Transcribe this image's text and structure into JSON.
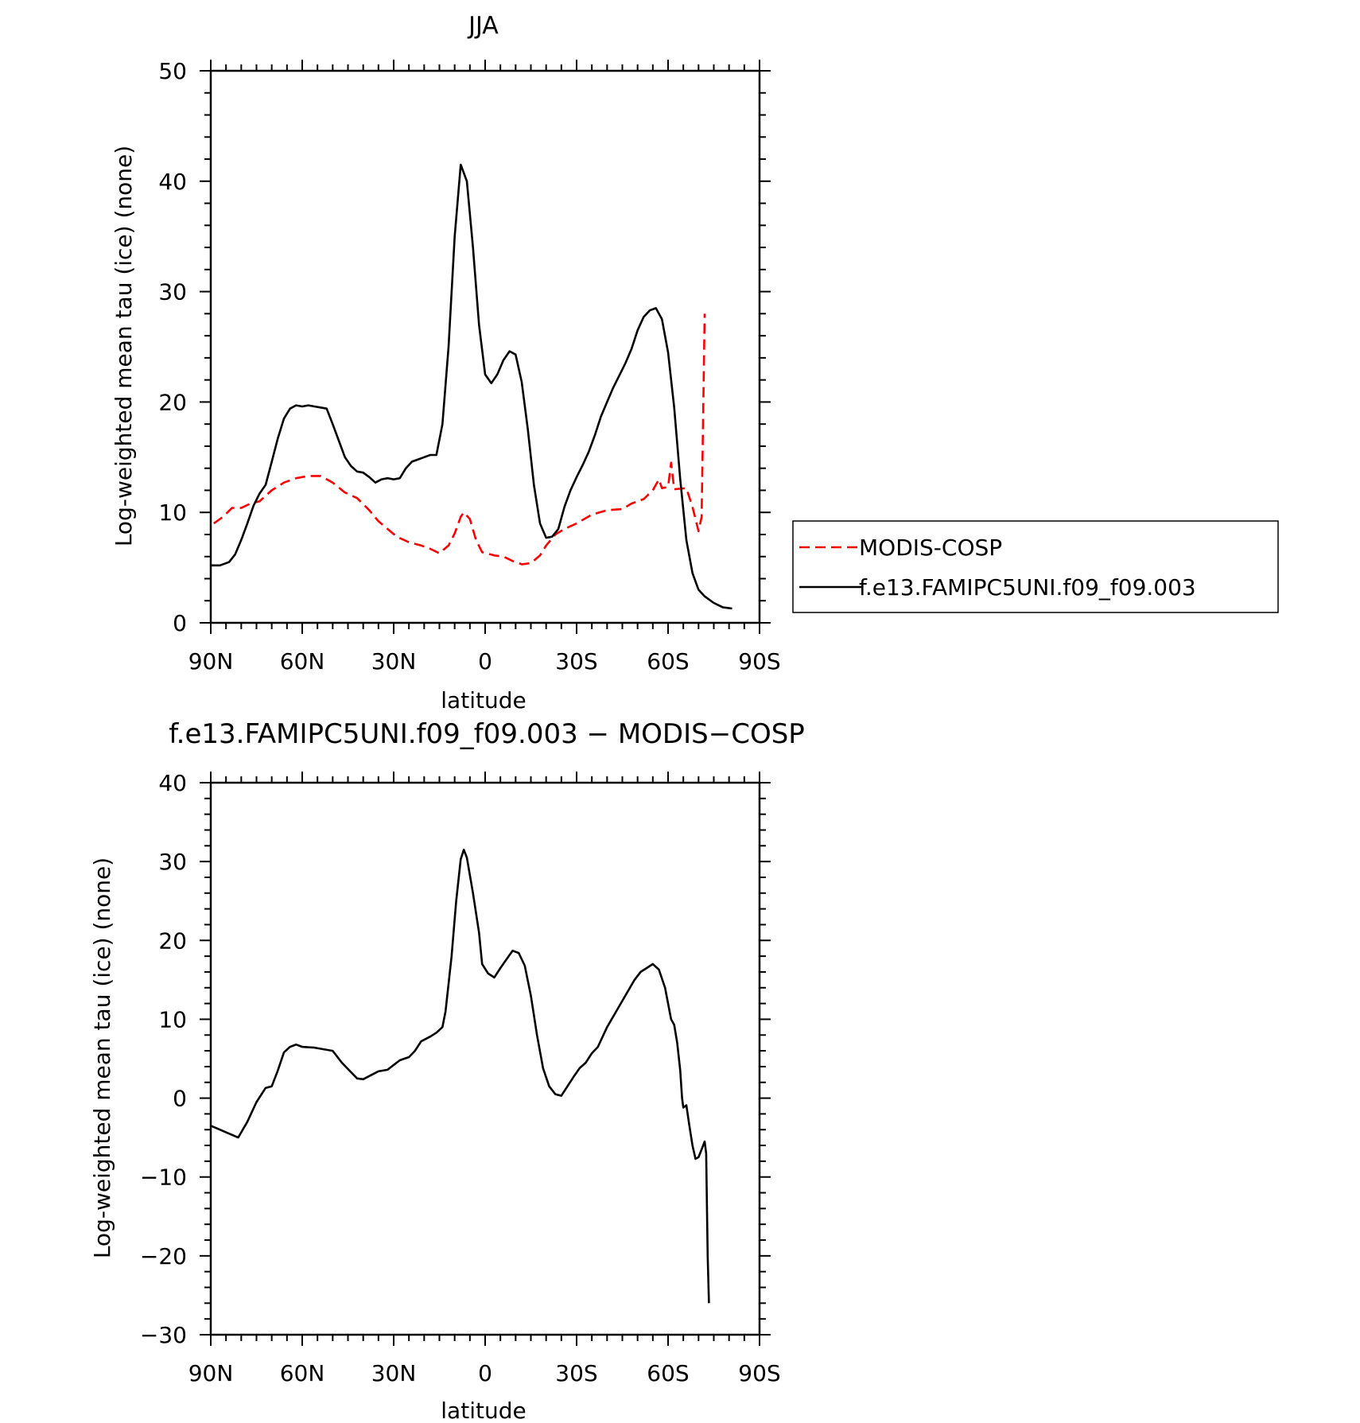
{
  "chart_data": [
    {
      "type": "line",
      "title": "JJA",
      "xlabel": "latitude",
      "ylabel": "Log-weighted mean tau (ice) (none)",
      "xlim": [
        90,
        -90
      ],
      "ylim": [
        0,
        50
      ],
      "x_ticks": [
        90,
        60,
        30,
        0,
        -30,
        -60,
        -90
      ],
      "x_tick_labels": [
        "90N",
        "60N",
        "30N",
        "0",
        "30S",
        "60S",
        "90S"
      ],
      "y_ticks": [
        0,
        10,
        20,
        30,
        40,
        50
      ],
      "y_tick_labels": [
        "0",
        "10",
        "20",
        "30",
        "40",
        "50"
      ],
      "grid": false,
      "legend": {
        "placement": "right"
      },
      "series": [
        {
          "name": "MODIS-COSP",
          "color": "#ff0000",
          "dash": "dashed",
          "points": [
            [
              89,
              9
            ],
            [
              86,
              9.6
            ],
            [
              83,
              10.4
            ],
            [
              80,
              10.4
            ],
            [
              77,
              10.8
            ],
            [
              74,
              11
            ],
            [
              70,
              12
            ],
            [
              66,
              12.7
            ],
            [
              62,
              13.1
            ],
            [
              58,
              13.3
            ],
            [
              54,
              13.3
            ],
            [
              50,
              12.7
            ],
            [
              46,
              11.8
            ],
            [
              42,
              11.3
            ],
            [
              38,
              10.2
            ],
            [
              35,
              9.2
            ],
            [
              32,
              8.5
            ],
            [
              29,
              7.8
            ],
            [
              25,
              7.3
            ],
            [
              21,
              7
            ],
            [
              18,
              6.7
            ],
            [
              15,
              6.3
            ],
            [
              12,
              7
            ],
            [
              10,
              8.1
            ],
            [
              8,
              9.6
            ],
            [
              7,
              10
            ],
            [
              5,
              9.4
            ],
            [
              3,
              7.5
            ],
            [
              1,
              6.4
            ],
            [
              -3,
              6.1
            ],
            [
              -6,
              6
            ],
            [
              -9,
              5.6
            ],
            [
              -12,
              5.3
            ],
            [
              -15,
              5.4
            ],
            [
              -18,
              6.1
            ],
            [
              -20,
              7
            ],
            [
              -23,
              8
            ],
            [
              -26,
              8.5
            ],
            [
              -30,
              9
            ],
            [
              -35,
              9.8
            ],
            [
              -40,
              10.2
            ],
            [
              -45,
              10.3
            ],
            [
              -48,
              10.8
            ],
            [
              -52,
              11.2
            ],
            [
              -55,
              12
            ],
            [
              -57,
              13
            ],
            [
              -58,
              12.2
            ],
            [
              -60,
              12.3
            ],
            [
              -61,
              14.5
            ],
            [
              -62,
              12.1
            ],
            [
              -66,
              12.2
            ],
            [
              -68,
              10.5
            ],
            [
              -70,
              8.3
            ],
            [
              -71,
              9.6
            ],
            [
              -72,
              28
            ]
          ]
        },
        {
          "name": "f.e13.FAMIPC5UNI.f09_f09.003",
          "color": "#000000",
          "dash": "solid",
          "points": [
            [
              90,
              5.2
            ],
            [
              87,
              5.2
            ],
            [
              84,
              5.5
            ],
            [
              82,
              6.2
            ],
            [
              80,
              7.5
            ],
            [
              78,
              9
            ],
            [
              76,
              10.6
            ],
            [
              74,
              11.7
            ],
            [
              72,
              12.5
            ],
            [
              70,
              14.6
            ],
            [
              68,
              16.7
            ],
            [
              66,
              18.5
            ],
            [
              64,
              19.4
            ],
            [
              62,
              19.7
            ],
            [
              60,
              19.6
            ],
            [
              58,
              19.7
            ],
            [
              56,
              19.6
            ],
            [
              54,
              19.5
            ],
            [
              52,
              19.4
            ],
            [
              50,
              18
            ],
            [
              48,
              16.5
            ],
            [
              46,
              15
            ],
            [
              44,
              14.2
            ],
            [
              42,
              13.7
            ],
            [
              40,
              13.6
            ],
            [
              38,
              13.2
            ],
            [
              36,
              12.7
            ],
            [
              34,
              13
            ],
            [
              32,
              13.1
            ],
            [
              30,
              13
            ],
            [
              28,
              13.1
            ],
            [
              26,
              14
            ],
            [
              24,
              14.6
            ],
            [
              22,
              14.8
            ],
            [
              20,
              15
            ],
            [
              18,
              15.2
            ],
            [
              16,
              15.2
            ],
            [
              14,
              18
            ],
            [
              12,
              25
            ],
            [
              10,
              35
            ],
            [
              8,
              41.5
            ],
            [
              6,
              40
            ],
            [
              4,
              34
            ],
            [
              2,
              27
            ],
            [
              0,
              22.5
            ],
            [
              -2,
              21.7
            ],
            [
              -4,
              22.5
            ],
            [
              -6,
              23.8
            ],
            [
              -8,
              24.6
            ],
            [
              -10,
              24.3
            ],
            [
              -12,
              21.8
            ],
            [
              -14,
              17.5
            ],
            [
              -16,
              12.5
            ],
            [
              -18,
              9
            ],
            [
              -20,
              7.7
            ],
            [
              -22,
              7.8
            ],
            [
              -24,
              8.5
            ],
            [
              -26,
              10.5
            ],
            [
              -28,
              12
            ],
            [
              -30,
              13.2
            ],
            [
              -32,
              14.3
            ],
            [
              -34,
              15.5
            ],
            [
              -36,
              17
            ],
            [
              -38,
              18.7
            ],
            [
              -40,
              20
            ],
            [
              -42,
              21.3
            ],
            [
              -44,
              22.4
            ],
            [
              -46,
              23.5
            ],
            [
              -48,
              24.8
            ],
            [
              -50,
              26.5
            ],
            [
              -52,
              27.7
            ],
            [
              -54,
              28.3
            ],
            [
              -56,
              28.5
            ],
            [
              -58,
              27.5
            ],
            [
              -60,
              24.5
            ],
            [
              -62,
              19.5
            ],
            [
              -64,
              13
            ],
            [
              -66,
              7.5
            ],
            [
              -68,
              4.5
            ],
            [
              -70,
              3
            ],
            [
              -72,
              2.4
            ],
            [
              -75,
              1.8
            ],
            [
              -78,
              1.4
            ],
            [
              -81,
              1.3
            ]
          ]
        }
      ]
    },
    {
      "type": "line",
      "title": "f.e13.FAMIPC5UNI.f09_f09.003 − MODIS−COSP",
      "xlabel": "latitude",
      "ylabel": "Log-weighted mean tau (ice) (none)",
      "xlim": [
        90,
        -90
      ],
      "ylim": [
        -30,
        40
      ],
      "x_ticks": [
        90,
        60,
        30,
        0,
        -30,
        -60,
        -90
      ],
      "x_tick_labels": [
        "90N",
        "60N",
        "30N",
        "0",
        "30S",
        "60S",
        "90S"
      ],
      "y_ticks": [
        -30,
        -20,
        -10,
        0,
        10,
        20,
        30,
        40
      ],
      "y_tick_labels": [
        "−30",
        "−20",
        "−10",
        "0",
        "10",
        "20",
        "30",
        "40"
      ],
      "grid": false,
      "series": [
        {
          "color": "#000000",
          "dash": "solid",
          "points": [
            [
              90,
              -3.5
            ],
            [
              87,
              -4
            ],
            [
              84,
              -4.5
            ],
            [
              81,
              -5
            ],
            [
              78,
              -3
            ],
            [
              75,
              -0.5
            ],
            [
              72,
              1.3
            ],
            [
              70,
              1.5
            ],
            [
              68,
              3.5
            ],
            [
              66,
              5.8
            ],
            [
              64,
              6.5
            ],
            [
              62,
              6.8
            ],
            [
              60,
              6.5
            ],
            [
              56,
              6.4
            ],
            [
              53,
              6.2
            ],
            [
              50,
              6
            ],
            [
              47,
              4.5
            ],
            [
              44,
              3.3
            ],
            [
              42,
              2.5
            ],
            [
              40,
              2.4
            ],
            [
              37,
              3
            ],
            [
              35,
              3.4
            ],
            [
              32,
              3.6
            ],
            [
              30,
              4.2
            ],
            [
              28,
              4.8
            ],
            [
              25,
              5.2
            ],
            [
              23,
              6
            ],
            [
              21,
              7.2
            ],
            [
              18,
              7.8
            ],
            [
              16,
              8.3
            ],
            [
              14,
              9
            ],
            [
              13,
              11
            ],
            [
              11,
              18
            ],
            [
              9.5,
              25
            ],
            [
              8,
              30.3
            ],
            [
              7,
              31.5
            ],
            [
              6,
              30.5
            ],
            [
              4,
              26
            ],
            [
              2,
              21
            ],
            [
              1,
              17
            ],
            [
              -1,
              15.8
            ],
            [
              -3,
              15.3
            ],
            [
              -5,
              16.5
            ],
            [
              -7,
              17.6
            ],
            [
              -9,
              18.7
            ],
            [
              -11,
              18.4
            ],
            [
              -13,
              16.8
            ],
            [
              -15,
              13
            ],
            [
              -17,
              8
            ],
            [
              -19,
              3.8
            ],
            [
              -21,
              1.5
            ],
            [
              -23,
              0.5
            ],
            [
              -25,
              0.3
            ],
            [
              -27,
              1.5
            ],
            [
              -29,
              2.7
            ],
            [
              -31,
              3.8
            ],
            [
              -33,
              4.5
            ],
            [
              -35,
              5.7
            ],
            [
              -37,
              6.5
            ],
            [
              -40,
              9
            ],
            [
              -43,
              11
            ],
            [
              -46,
              13
            ],
            [
              -49,
              15
            ],
            [
              -51,
              16
            ],
            [
              -53,
              16.5
            ],
            [
              -55,
              17
            ],
            [
              -57,
              16.3
            ],
            [
              -59,
              14
            ],
            [
              -61,
              10
            ],
            [
              -62,
              9.3
            ],
            [
              -63,
              7
            ],
            [
              -64,
              3.5
            ],
            [
              -64.6,
              0
            ],
            [
              -65,
              -1.2
            ],
            [
              -66,
              -0.9
            ],
            [
              -67,
              -3.5
            ],
            [
              -68,
              -6
            ],
            [
              -69,
              -7.7
            ],
            [
              -70,
              -7.5
            ],
            [
              -71,
              -6.5
            ],
            [
              -72,
              -5.5
            ],
            [
              -72.5,
              -7
            ],
            [
              -73,
              -20
            ],
            [
              -73.4,
              -26
            ]
          ]
        }
      ]
    }
  ]
}
